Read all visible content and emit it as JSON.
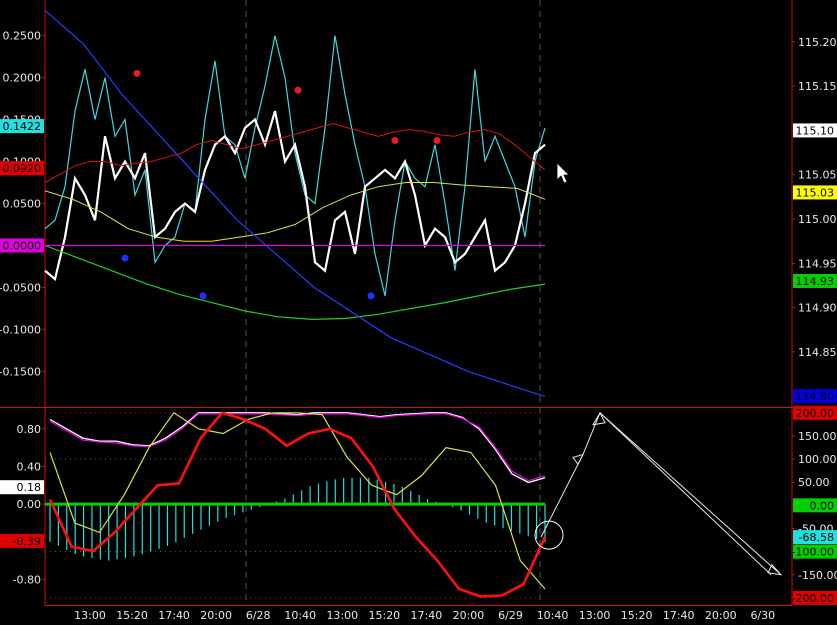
{
  "chart_data": [
    {
      "type": "line",
      "panel": "upper",
      "left_axis": {
        "ticks": [
          "0.2500",
          "0.2000",
          "0.1500",
          "0.1000",
          "0.0500",
          "0.0000",
          "-0.0500",
          "-0.1000",
          "-0.1500"
        ],
        "range": [
          -0.19,
          0.29
        ]
      },
      "right_axis": {
        "ticks": [
          "115.20",
          "115.15",
          "115.10",
          "115.05",
          "115.00",
          "114.95",
          "114.90",
          "114.85"
        ],
        "range": [
          114.79,
          115.245
        ]
      },
      "tags": [
        {
          "text": "0.1422",
          "side": "left",
          "value": 0.1422,
          "color": "#20e0e0"
        },
        {
          "text": "0.0920",
          "side": "left",
          "value": 0.092,
          "color": "#e00000"
        },
        {
          "text": "0.0000",
          "side": "left",
          "value": 0.0,
          "color": "#e000e0"
        },
        {
          "text": "115.10",
          "side": "right",
          "value": 115.1,
          "color": "#ffffff"
        },
        {
          "text": "115.03",
          "side": "right",
          "value": 115.03,
          "color": "#ffff00"
        },
        {
          "text": "114.93",
          "side": "right",
          "value": 114.93,
          "color": "#00d000"
        },
        {
          "text": "114.80",
          "side": "right",
          "value": 114.8,
          "color": "#0000e0"
        }
      ],
      "series": [
        {
          "axis": "left",
          "color": "#40d8e0",
          "values": [
            0.02,
            0.03,
            0.07,
            0.16,
            0.21,
            0.15,
            0.2,
            0.13,
            0.15,
            0.06,
            0.09,
            -0.02,
            0.0,
            0.01,
            0.05,
            0.04,
            0.15,
            0.22,
            0.13,
            0.12,
            0.08,
            0.14,
            0.19,
            0.25,
            0.2,
            0.11,
            0.06,
            0.05,
            0.14,
            0.25,
            0.18,
            0.12,
            0.07,
            -0.01,
            -0.06,
            0.03,
            0.1,
            0.08,
            0.07,
            0.12,
            0.05,
            -0.03,
            0.07,
            0.21,
            0.1,
            0.13,
            0.1,
            0.07,
            0.01,
            0.1,
            0.14
          ]
        },
        {
          "axis": "left",
          "color": "#ffffff",
          "values": [
            -0.03,
            -0.04,
            0.01,
            0.08,
            0.06,
            0.03,
            0.13,
            0.08,
            0.1,
            0.08,
            0.11,
            0.01,
            0.02,
            0.04,
            0.05,
            0.04,
            0.09,
            0.12,
            0.13,
            0.11,
            0.14,
            0.15,
            0.12,
            0.16,
            0.1,
            0.12,
            0.07,
            -0.02,
            -0.03,
            0.03,
            0.04,
            -0.01,
            0.07,
            0.08,
            0.09,
            0.08,
            0.1,
            0.06,
            0.0,
            0.02,
            0.01,
            -0.02,
            -0.01,
            0.01,
            0.03,
            -0.03,
            -0.02,
            0.0,
            0.05,
            0.11,
            0.12
          ]
        },
        {
          "axis": "left",
          "color": "#e01010",
          "values": [
            0.075,
            0.085,
            0.095,
            0.1,
            0.1,
            0.095,
            0.098,
            0.1,
            0.105,
            0.11,
            0.12,
            0.125,
            0.12,
            0.115,
            0.12,
            0.125,
            0.13,
            0.135,
            0.14,
            0.145,
            0.14,
            0.135,
            0.13,
            0.135,
            0.138,
            0.136,
            0.132,
            0.13,
            0.135,
            0.138,
            0.133,
            0.12,
            0.105,
            0.09
          ]
        },
        {
          "axis": "left",
          "color": "#e0e040",
          "values": [
            0.065,
            0.055,
            0.04,
            0.02,
            0.01,
            0.005,
            0.005,
            0.01,
            0.015,
            0.025,
            0.045,
            0.06,
            0.07,
            0.075,
            0.075,
            0.072,
            0.07,
            0.068,
            0.055
          ]
        },
        {
          "axis": "left",
          "color": "#20d020",
          "values": [
            0.0,
            -0.015,
            -0.03,
            -0.045,
            -0.058,
            -0.068,
            -0.078,
            -0.085,
            -0.088,
            -0.087,
            -0.082,
            -0.075,
            -0.068,
            -0.06,
            -0.052,
            -0.046
          ]
        },
        {
          "axis": "left",
          "color": "#2040ff",
          "values": [
            0.28,
            0.24,
            0.18,
            0.13,
            0.08,
            0.03,
            -0.01,
            -0.05,
            -0.08,
            -0.11,
            -0.13,
            -0.15,
            -0.165,
            -0.18
          ]
        },
        {
          "axis": "left",
          "color": "#e000e0",
          "values": [
            0.0,
            0.0
          ]
        }
      ],
      "markers": [
        {
          "color": "#e02020",
          "values": [
            0.205,
            0.185,
            0.125,
            0.125
          ]
        },
        {
          "color": "#2030ff",
          "values": [
            -0.015,
            -0.06,
            -0.06
          ]
        }
      ]
    },
    {
      "type": "line",
      "panel": "lower",
      "left_axis": {
        "ticks": [
          "0.80",
          "0.40",
          "0.00",
          "-0.40",
          "-0.80"
        ],
        "range": [
          -1.05,
          1.0
        ]
      },
      "right_axis": {
        "ticks": [
          "200.00",
          "150.00",
          "100.00",
          "50.00",
          "0.00",
          "-50.00",
          "-100.00",
          "-150.00",
          "-200.00"
        ],
        "range": [
          -211,
          206
        ]
      },
      "tags": [
        {
          "text": "0.18",
          "side": "left",
          "value": 0.18,
          "color": "#ffffff"
        },
        {
          "text": "-0.39",
          "side": "left",
          "value": -0.39,
          "color": "#e00000"
        },
        {
          "text": "200.00",
          "side": "right",
          "value": 200,
          "color": "#e00000"
        },
        {
          "text": "0.00",
          "side": "right",
          "value": 0,
          "color": "#00d000"
        },
        {
          "text": "-68.58",
          "side": "right",
          "value": -68.58,
          "color": "#20e0e0"
        },
        {
          "text": "-100.00",
          "side": "right",
          "value": -100,
          "color": "#00d000"
        },
        {
          "text": "-200.00",
          "side": "right",
          "value": -200,
          "color": "#e00000"
        }
      ],
      "series": [
        {
          "axis": "left",
          "color": "#ffffff",
          "values": [
            0.9,
            0.8,
            0.7,
            0.67,
            0.67,
            0.63,
            0.62,
            0.7,
            0.82,
            0.97,
            0.97,
            0.97,
            0.97,
            0.97,
            0.96,
            0.95,
            0.97,
            0.97,
            0.97,
            0.95,
            0.93,
            0.95,
            0.96,
            0.97,
            0.97,
            0.92,
            0.8,
            0.58,
            0.32,
            0.23,
            0.28
          ]
        },
        {
          "axis": "left",
          "color": "#e000e0",
          "values": [
            0.88,
            0.78,
            0.68,
            0.66,
            0.65,
            0.62,
            0.61,
            0.68,
            0.8,
            0.96,
            0.96,
            0.96,
            0.96,
            0.96,
            0.95,
            0.94,
            0.96,
            0.96,
            0.96,
            0.94,
            0.92,
            0.94,
            0.95,
            0.96,
            0.96,
            0.91,
            0.82,
            0.6,
            0.35,
            0.25,
            0.3
          ]
        },
        {
          "axis": "left",
          "color": "#e0e040",
          "values": [
            0.55,
            -0.2,
            -0.3,
            0.1,
            0.6,
            0.97,
            0.8,
            0.75,
            0.9,
            0.97,
            0.97,
            0.95,
            0.5,
            0.2,
            0.1,
            0.3,
            0.6,
            0.55,
            0.2,
            -0.6,
            -0.9
          ]
        },
        {
          "axis": "left",
          "color": "#ff1010",
          "values": [
            0.05,
            -0.45,
            -0.5,
            -0.3,
            -0.05,
            0.2,
            0.22,
            0.7,
            0.97,
            0.9,
            0.8,
            0.62,
            0.75,
            0.8,
            0.7,
            0.4,
            -0.05,
            -0.35,
            -0.6,
            -0.9,
            -0.98,
            -0.97,
            -0.85,
            -0.35
          ]
        },
        {
          "axis": "right",
          "color": "#e8e8e8",
          "values": [
            -68.58,
            110.0,
            200.0,
            -150.0
          ]
        }
      ],
      "histogram": {
        "color": "#20e0e0",
        "values": [
          -0.4,
          -0.55,
          -0.6,
          -0.55,
          -0.45,
          -0.3,
          -0.15,
          -0.05,
          0.05,
          0.2,
          0.28,
          0.28,
          0.2,
          0.05,
          -0.05,
          -0.2,
          -0.3,
          -0.4
        ]
      }
    }
  ],
  "x_axis": {
    "ticks": [
      "13:00",
      "15:20",
      "17:40",
      "20:00",
      "6/28",
      "10:40",
      "13:00",
      "15:20",
      "17:40",
      "20:00",
      "6/29",
      "10:40",
      "13:00",
      "15:20",
      "17:40",
      "20:00",
      "6/30"
    ]
  }
}
